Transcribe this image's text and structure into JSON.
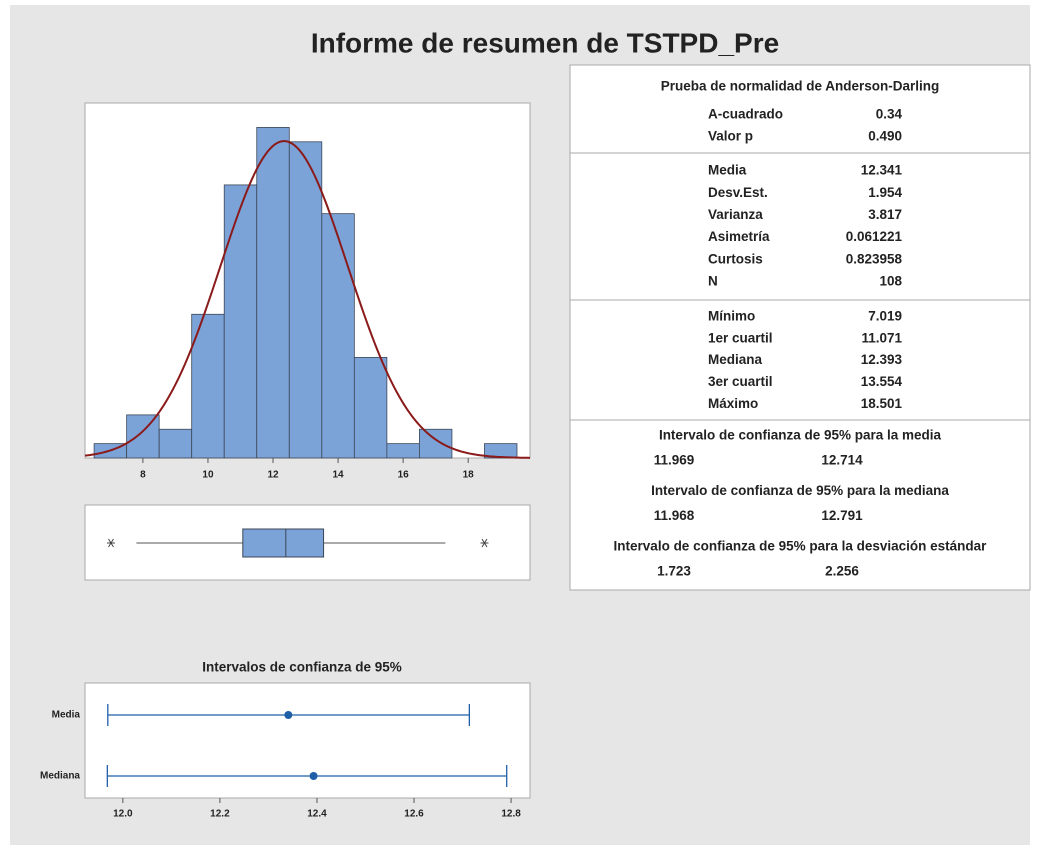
{
  "title": "Informe de resumen de TSTPD_Pre",
  "chart_data": [
    {
      "type": "histogram",
      "bins": [
        6.5,
        7.5,
        8.5,
        9.5,
        10.5,
        11.5,
        12.5,
        13.5,
        14.5,
        15.5,
        16.5,
        17.5,
        18.5,
        19.5
      ],
      "counts": [
        1,
        3,
        2,
        10,
        19,
        23,
        22,
        17,
        7,
        1,
        2,
        0,
        1
      ],
      "color": "#7ba3d8",
      "edge_color": "#3c4656",
      "fit": {
        "mean": 12.341,
        "sd": 1.954,
        "color": "#8b1a1a"
      },
      "xlim": [
        6.22,
        19.9
      ],
      "xticks": [
        8,
        10,
        12,
        14,
        16,
        18
      ],
      "ylim": [
        0,
        24.7
      ]
    },
    {
      "type": "box",
      "q1": 11.071,
      "median": 12.393,
      "q3": 13.554,
      "whisker_low": 7.8,
      "whisker_high": 17.3,
      "outliers": [
        7.019,
        18.501
      ],
      "color": "#7ba3d8",
      "xlim": [
        6.22,
        19.9
      ]
    },
    {
      "type": "interval",
      "title": "Intervalos de confianza de 95%",
      "series": [
        {
          "name": "Media",
          "center": 12.341,
          "low": 11.969,
          "high": 12.714
        },
        {
          "name": "Mediana",
          "center": 12.393,
          "low": 11.968,
          "high": 12.791
        }
      ],
      "color": "#1f5fa8",
      "xlim": [
        11.922,
        12.839
      ],
      "xticks": [
        {
          "value": 12,
          "label": "12.0"
        },
        12.2,
        12.4,
        12.6,
        12.8
      ]
    }
  ],
  "stats_table": {
    "normality": {
      "title": "Prueba de normalidad de Anderson-Darling",
      "rows": [
        [
          "A-cuadrado",
          "0.34"
        ],
        [
          "Valor p",
          "0.490"
        ]
      ]
    },
    "descriptive": {
      "rows": [
        [
          "Media",
          "12.341"
        ],
        [
          "Desv.Est.",
          "1.954"
        ],
        [
          "Varianza",
          "3.817"
        ],
        [
          "Asimetría",
          "0.061221"
        ],
        [
          "Curtosis",
          "0.823958"
        ],
        [
          "N",
          "108"
        ]
      ]
    },
    "quartiles": {
      "rows": [
        [
          "Mínimo",
          "7.019"
        ],
        [
          "1er cuartil",
          "11.071"
        ],
        [
          "Mediana",
          "12.393"
        ],
        [
          "3er cuartil",
          "13.554"
        ],
        [
          "Máximo",
          "18.501"
        ]
      ]
    },
    "intervals": [
      {
        "title": "Intervalo de confianza de 95% para la media",
        "low": "11.969",
        "high": "12.714"
      },
      {
        "title": "Intervalo de confianza de 95% para la mediana",
        "low": "11.968",
        "high": "12.791"
      },
      {
        "title": "Intervalo de confianza de 95% para la desviación estándar",
        "low": "1.723",
        "high": "2.256"
      }
    ]
  }
}
